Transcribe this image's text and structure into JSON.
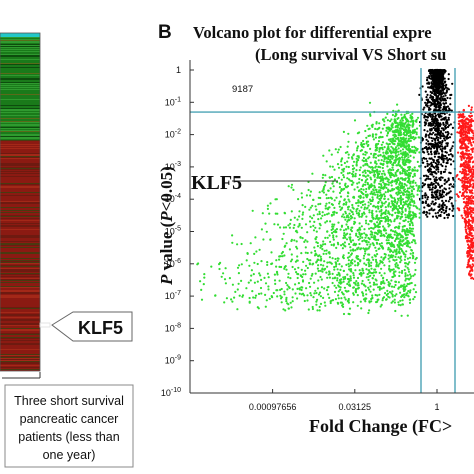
{
  "panel_label": "B",
  "title_line1": "Volcano plot for differential expre",
  "title_line2": "(Long survival VS Short su",
  "count_label": "9187",
  "gene_label_plot": "KLF5",
  "gene_label_heatmap": "KLF5",
  "heatmap_caption": [
    "Three short survival",
    "pancreatic cancer",
    "patients (less than",
    "one year)"
  ],
  "colors": {
    "up": "#ff1a1a",
    "down": "#33dd33",
    "ns": "#000000",
    "threshold": "#4aa3b5",
    "heat_top": "#22c8c8",
    "heat_green": "#1a7a1a",
    "heat_red": "#8b1a12"
  },
  "chart_data": {
    "type": "scatter",
    "title": "Volcano plot for differential expre (Long survival VS Short su",
    "xlabel": "Fold Change (FC>",
    "ylabel_italic": "P",
    "ylabel_rest": " value (",
    "ylabel_italic2": "P",
    "ylabel_tail": "<0.05)",
    "x_scale": "log2",
    "y_scale": "log10",
    "xlim": [
      3e-05,
      2.5
    ],
    "ylim": [
      1e-10,
      1
    ],
    "x_tick_labels": [
      "0.00097656",
      "0.03125",
      "1"
    ],
    "x_ticks": [
      0.0009765625,
      0.03125,
      1
    ],
    "y_tick_labels": [
      {
        "base": "1",
        "exp": ""
      },
      {
        "base": "10",
        "exp": "-1"
      },
      {
        "base": "10",
        "exp": "-2"
      },
      {
        "base": "10",
        "exp": "-3"
      },
      {
        "base": "10",
        "exp": "-4"
      },
      {
        "base": "10",
        "exp": "-5"
      },
      {
        "base": "10",
        "exp": "-6"
      },
      {
        "base": "10",
        "exp": "-7"
      },
      {
        "base": "10",
        "exp": "-8"
      },
      {
        "base": "10",
        "exp": "-9"
      },
      {
        "base": "10",
        "exp": "-10"
      }
    ],
    "y_ticks": [
      1,
      0.1,
      0.01,
      0.001,
      0.0001,
      1e-05,
      1e-06,
      1e-07,
      1e-08,
      1e-09,
      1e-10
    ],
    "thresholds": {
      "p_value": 0.05,
      "fc_low": 0.5,
      "fc_high": 2
    },
    "series": [
      {
        "name": "",
        "color": "#33dd33",
        "description_points": "downregulated"
      },
      {
        "name": "",
        "color": "#000000",
        "description_points": "not significant"
      },
      {
        "name": "",
        "color": "#ff1a1a",
        "description_points": "upregulated"
      }
    ],
    "highlight": {
      "label": "KLF5",
      "x": 0.06,
      "y": 0.0003
    }
  }
}
